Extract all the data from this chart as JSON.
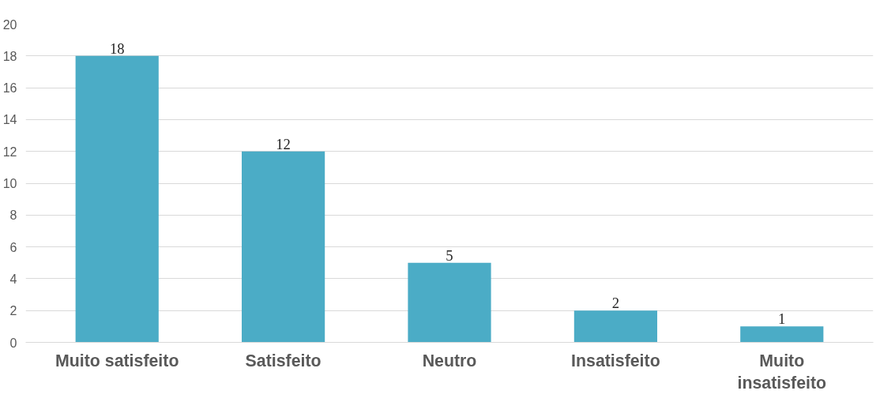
{
  "chart_data": {
    "type": "bar",
    "categories": [
      "Muito satisfeito",
      "Satisfeito",
      "Neutro",
      "Insatisfeito",
      "Muito\ninsatisfeito"
    ],
    "values": [
      18,
      12,
      5,
      2,
      1
    ],
    "color": "#4bacc6",
    "ylim": [
      0,
      20
    ],
    "yticks": [
      0,
      2,
      4,
      6,
      8,
      10,
      12,
      14,
      16,
      18,
      20
    ],
    "grid": "y",
    "data_labels": true
  }
}
